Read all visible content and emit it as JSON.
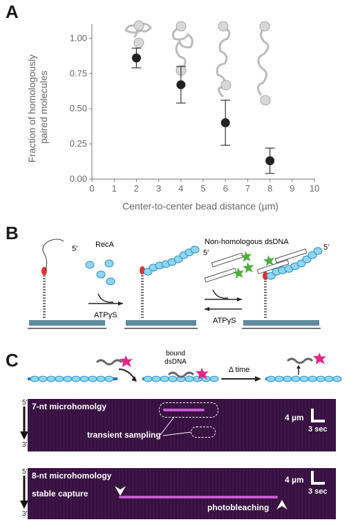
{
  "panels": {
    "a": "A",
    "b": "B",
    "c": "C"
  },
  "chart_data": {
    "type": "scatter",
    "xlabel": "Center-to-center bead distance (µm)",
    "ylabel": "Fraction of homologously paired molecules",
    "xlim": [
      0,
      10
    ],
    "ylim": [
      0,
      1.1
    ],
    "x_ticks": [
      "0",
      "1",
      "2",
      "3",
      "4",
      "5",
      "6",
      "7",
      "8",
      "9",
      "10"
    ],
    "y_ticks": [
      "0.00",
      "0.25",
      "0.50",
      "0.75",
      "1.00"
    ],
    "points": [
      {
        "x": 2,
        "y": 0.86,
        "err_low": 0.79,
        "err_high": 0.93
      },
      {
        "x": 4,
        "y": 0.67,
        "err_low": 0.54,
        "err_high": 0.8
      },
      {
        "x": 6,
        "y": 0.4,
        "err_low": 0.24,
        "err_high": 0.56
      },
      {
        "x": 8,
        "y": 0.13,
        "err_low": 0.04,
        "err_high": 0.22
      }
    ],
    "grid": false,
    "marker_color": "#222222"
  },
  "panel_b": {
    "reca": "RecA",
    "atp1": "ATPγS",
    "atp2": "ATPγS",
    "nonhomologous": "Non-homologous dsDNA",
    "five_prime_1": "5'",
    "five_prime_2": "5'",
    "five_prime_3": "5'"
  },
  "panel_c": {
    "bound": "bound",
    "dsdna": "dsDNA",
    "delta_time": "Δ time",
    "kymo1": {
      "title": "7-nt microhomolgy",
      "annotation": "transient sampling",
      "top": "5'",
      "bottom": "3'",
      "scale_um": "4 µm",
      "scale_sec": "3 sec"
    },
    "kymo2": {
      "title": "8-nt microhomology",
      "stable": "stable capture",
      "photobleaching": "photobleaching",
      "top": "5'",
      "bottom": "3'",
      "scale_um": "4 µm",
      "scale_sec": "3 sec"
    }
  },
  "colors": {
    "bead": "#cfcfcf",
    "reca": "#8fd6f2",
    "reca_stroke": "#2b8cc4",
    "fluor_green": "#4cae3a",
    "fluor_magenta": "#e0288a",
    "kymo_bg": "#3a1440",
    "kymo_signal": "#d06ad8"
  }
}
